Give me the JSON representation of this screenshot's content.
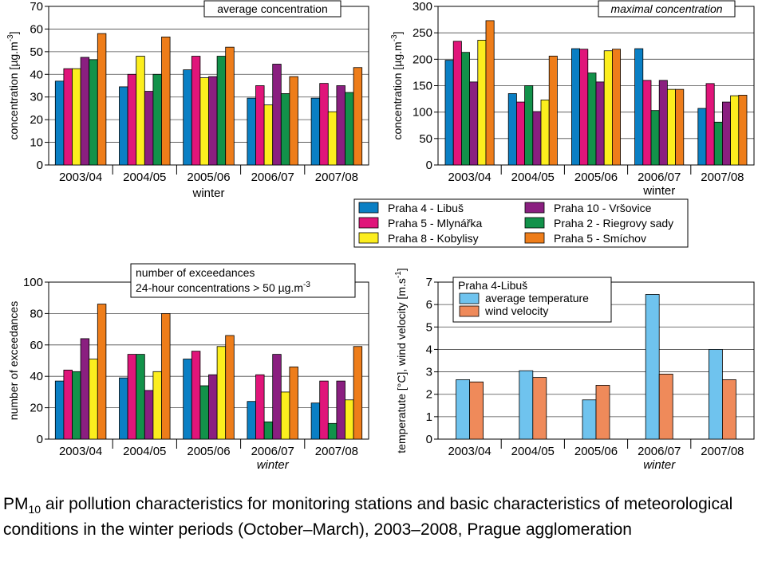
{
  "caption": {
    "lead": "PM",
    "sub": "10",
    "rest": " air pollution characteristics for monitoring stations and basic characteristics of meteorological conditions in the winter periods (October–March), 2003–2008, Prague agglomeration"
  },
  "colors": {
    "Praha 4 - Libuš": "#0a7fc4",
    "Praha 5 - Mlynářka": "#e0157a",
    "Praha 8 - Kobylisy": "#fcee1e",
    "Praha 10 - Vršovice": "#8a1f80",
    "Praha 2 - Riegrovy sady": "#12924a",
    "Praha 5 - Smíchov": "#ee7d1a",
    "average temperature": "#6fc3ee",
    "wind velocity": "#ef8a5a"
  },
  "legend": {
    "entries": [
      "Praha 4 - Libuš",
      "Praha 10 - Vršovice",
      "Praha 5 - Mlynářka",
      "Praha 2 - Riegrovy sady",
      "Praha 8 - Kobylisy",
      "Praha 5 - Smíchov"
    ]
  },
  "chart_data": [
    {
      "id": "avg",
      "type": "bar",
      "title": "average concentration",
      "title_italic": false,
      "ylabel": "concentration [µg.m",
      "ylabel_sup": "-3",
      "ylabel_end": "]",
      "xlabel": "winter",
      "xlabel_italic": false,
      "ylim": [
        0,
        70
      ],
      "yticks": [
        0,
        10,
        20,
        30,
        40,
        50,
        60,
        70
      ],
      "grid": true,
      "categories": [
        "2003/04",
        "2004/05",
        "2005/06",
        "2006/07",
        "2007/08"
      ],
      "series": [
        {
          "name": "Praha 4 - Libuš",
          "values": [
            37,
            34.5,
            42,
            29.5,
            29.5
          ]
        },
        {
          "name": "Praha 5 - Mlynářka",
          "values": [
            42.5,
            40,
            48,
            35,
            36
          ]
        },
        {
          "name": "Praha 8 - Kobylisy",
          "values": [
            42.5,
            48,
            38.5,
            26.5,
            23.5
          ]
        },
        {
          "name": "Praha 10 - Vršovice",
          "values": [
            47.5,
            32.5,
            39,
            44.5,
            35
          ]
        },
        {
          "name": "Praha 2 - Riegrovy sady",
          "values": [
            46.5,
            40,
            48,
            31.5,
            32
          ]
        },
        {
          "name": "Praha 5 - Smíchov",
          "values": [
            58,
            56.5,
            52,
            39,
            43
          ]
        }
      ]
    },
    {
      "id": "max",
      "type": "bar",
      "title": "maximal concentration",
      "title_italic": true,
      "ylabel": "concentration [µg.m",
      "ylabel_sup": "-3",
      "ylabel_end": "]",
      "xlabel": "winter",
      "xlabel_italic": false,
      "ylim": [
        0,
        300
      ],
      "yticks": [
        0,
        50,
        100,
        150,
        200,
        250,
        300
      ],
      "grid": true,
      "categories": [
        "2003/04",
        "2004/05",
        "2005/06",
        "2006/07",
        "2007/08"
      ],
      "series": [
        {
          "name": "Praha 4 - Libuš",
          "values": [
            198,
            135,
            220,
            220,
            107
          ]
        },
        {
          "name": "Praha 5 - Mlynářka",
          "values": [
            234,
            119,
            219,
            160,
            154
          ]
        },
        {
          "name": "Praha 2 - Riegrovy sady",
          "values": [
            213,
            150,
            174,
            103,
            81
          ]
        },
        {
          "name": "Praha 10 - Vršovice",
          "values": [
            157,
            101,
            157,
            160,
            119
          ]
        },
        {
          "name": "Praha 8 - Kobylisy",
          "values": [
            236,
            123,
            216,
            143,
            131
          ]
        },
        {
          "name": "Praha 5 - Smíchov",
          "values": [
            273,
            206,
            219,
            143,
            132
          ]
        }
      ]
    },
    {
      "id": "exc",
      "type": "bar",
      "title": "number of exceedances",
      "subtitle": "24-hour concentrations > 50 µg.m",
      "subtitle_sup": "-3",
      "title_italic": false,
      "ylabel": "number of exceedances",
      "xlabel": "winter",
      "xlabel_italic": true,
      "ylim": [
        0,
        100
      ],
      "yticks": [
        0,
        20,
        40,
        60,
        80,
        100
      ],
      "grid": true,
      "categories": [
        "2003/04",
        "2004/05",
        "2005/06",
        "2006/07",
        "2007/08"
      ],
      "series": [
        {
          "name": "Praha 4 - Libuš",
          "values": [
            37,
            39,
            51,
            24,
            23
          ]
        },
        {
          "name": "Praha 5 - Mlynářka",
          "values": [
            44,
            54,
            56,
            41,
            37
          ]
        },
        {
          "name": "Praha 2 - Riegrovy sady",
          "values": [
            43,
            54,
            34,
            11,
            10
          ]
        },
        {
          "name": "Praha 10 - Vršovice",
          "values": [
            64,
            31,
            41,
            54,
            37
          ]
        },
        {
          "name": "Praha 8 - Kobylisy",
          "values": [
            51,
            43,
            59,
            30,
            25
          ]
        },
        {
          "name": "Praha 5 - Smíchov",
          "values": [
            86,
            80,
            66,
            46,
            59
          ]
        }
      ]
    },
    {
      "id": "met",
      "type": "bar",
      "title": "Praha 4-Libuš",
      "title_italic": false,
      "ylabel": "temperatute [°C], wind velocity [m.s",
      "ylabel_sup": "-1",
      "ylabel_end": "]",
      "xlabel": "winter",
      "xlabel_italic": true,
      "ylim": [
        0,
        7
      ],
      "yticks": [
        0,
        1,
        2,
        3,
        4,
        5,
        6,
        7
      ],
      "grid": true,
      "categories": [
        "2003/04",
        "2004/05",
        "2005/06",
        "2006/07",
        "2007/08"
      ],
      "series": [
        {
          "name": "average temperature",
          "values": [
            2.65,
            3.05,
            1.75,
            6.45,
            4.0
          ]
        },
        {
          "name": "wind velocity",
          "values": [
            2.55,
            2.75,
            2.4,
            2.9,
            2.65
          ]
        }
      ]
    }
  ]
}
